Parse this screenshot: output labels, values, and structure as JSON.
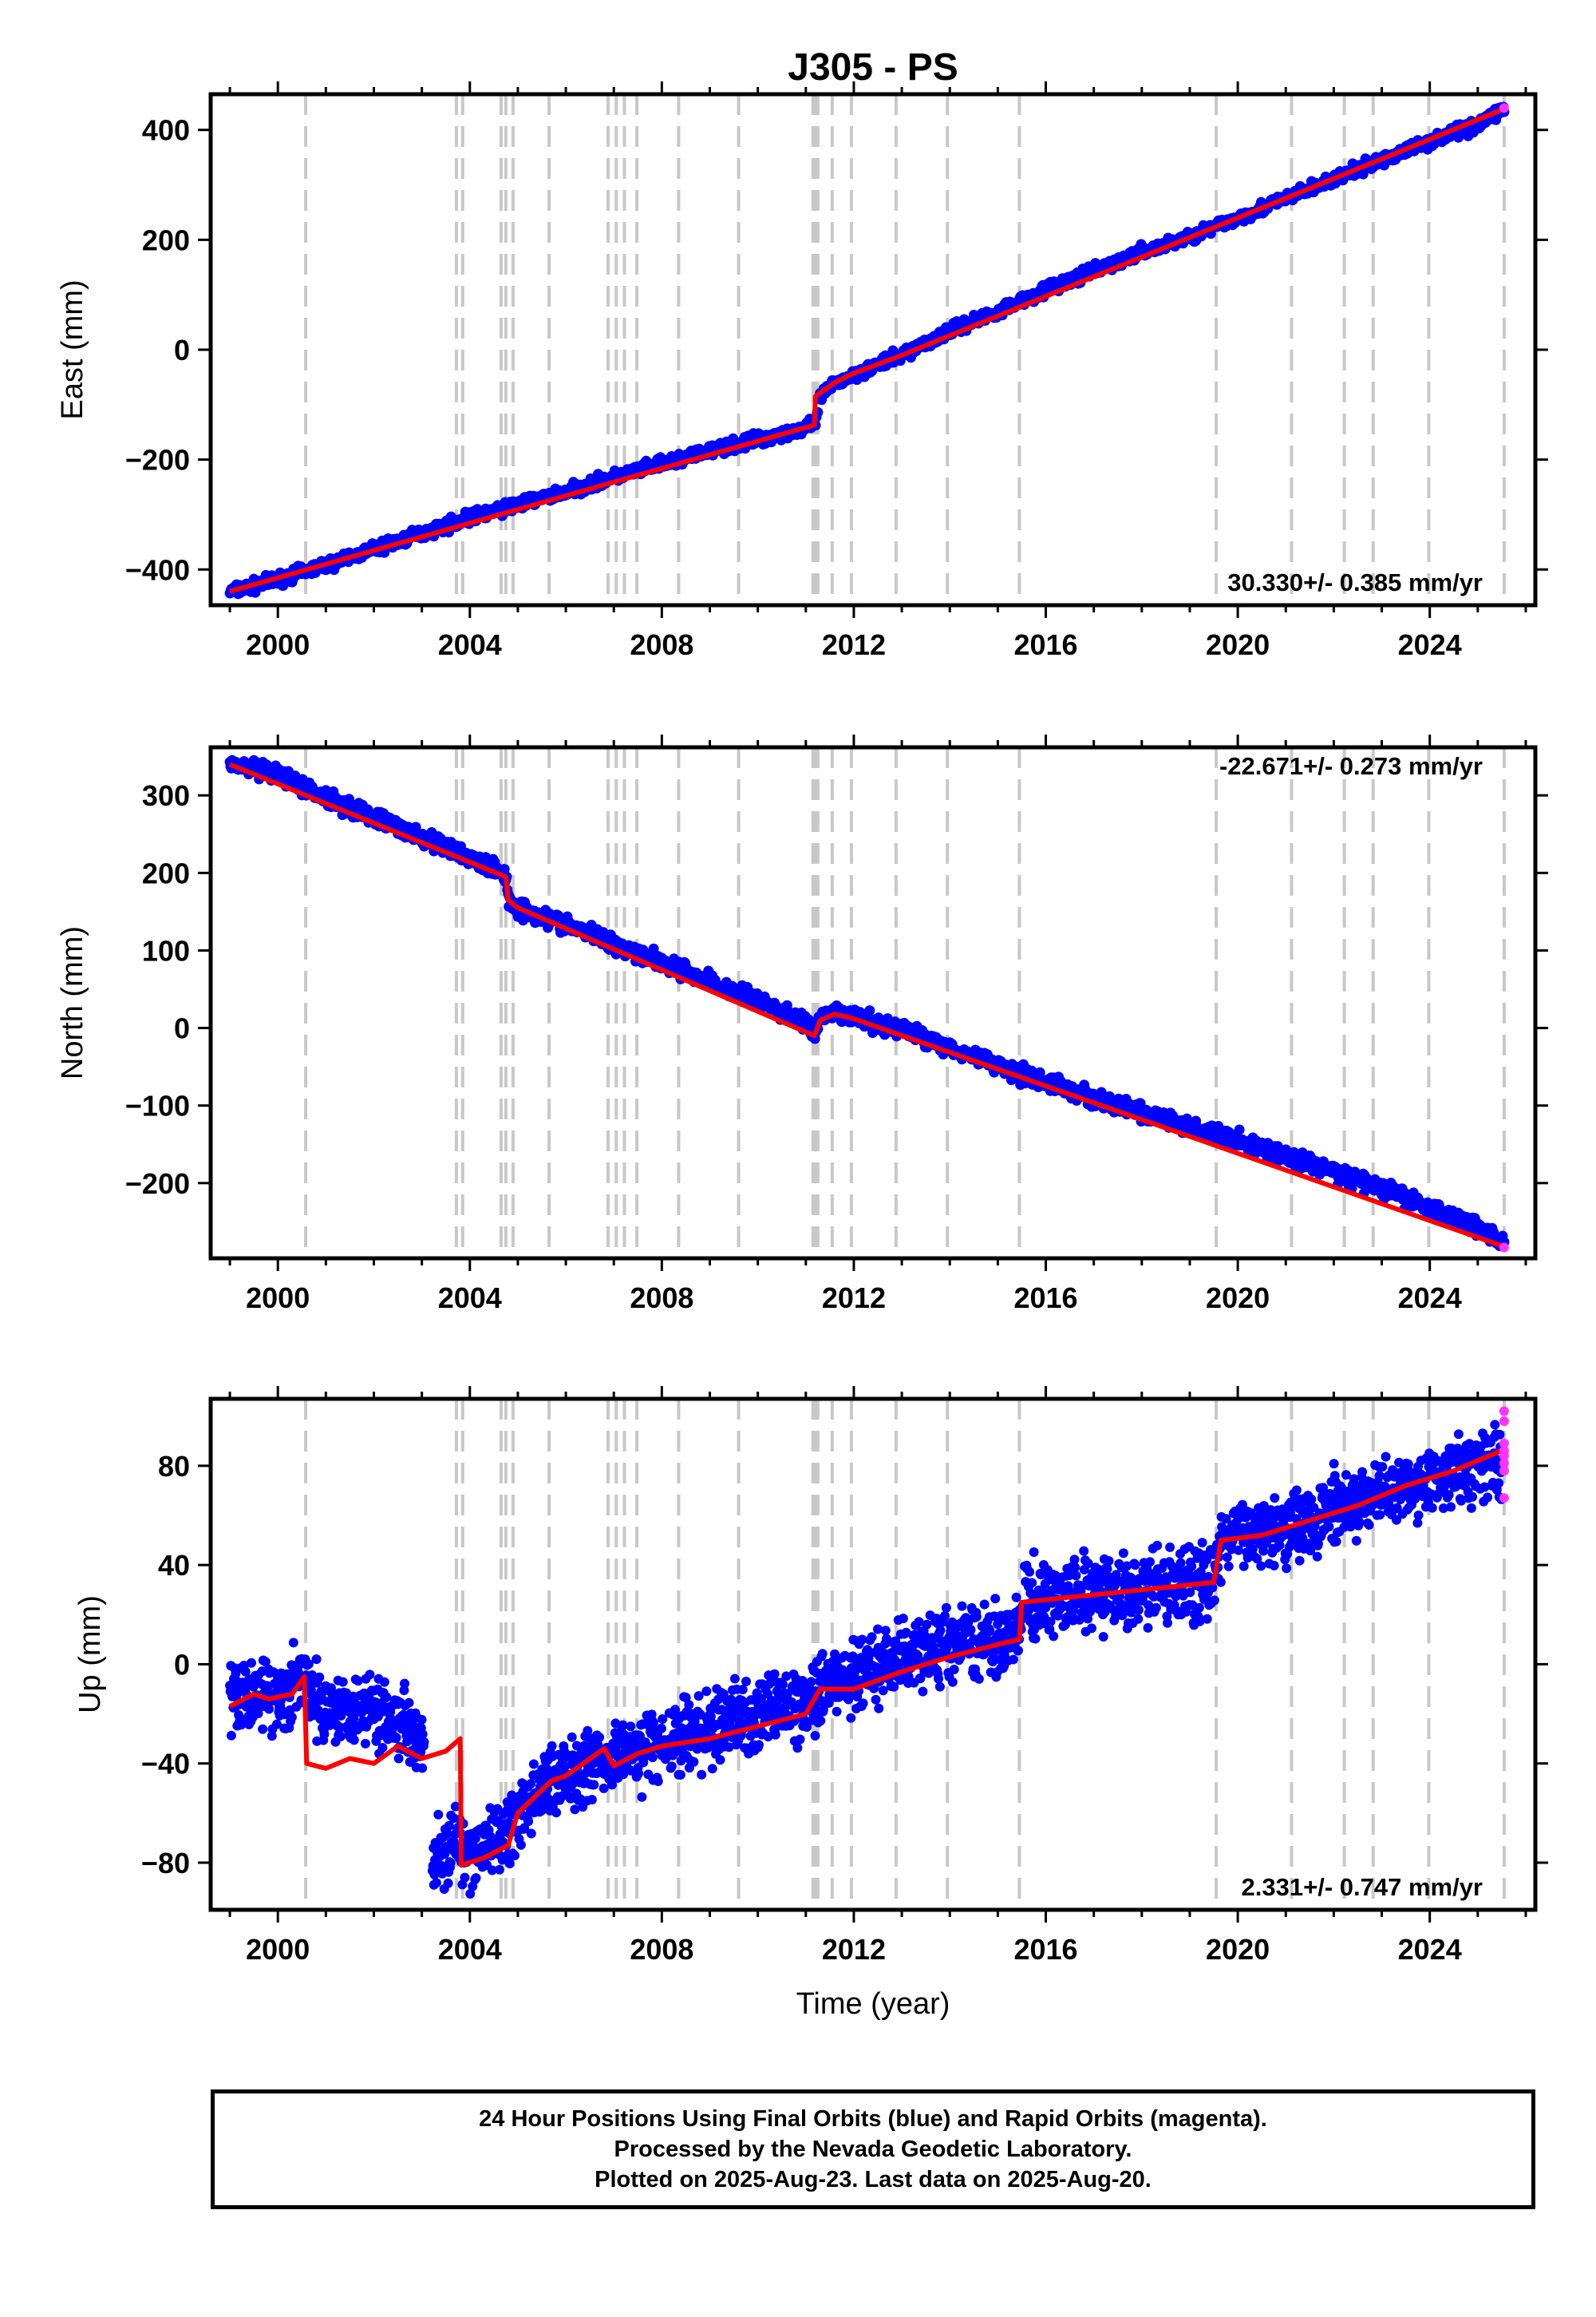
{
  "title": "J305 - PS",
  "chart_data": [
    {
      "type": "scatter",
      "ylabel": "East (mm)",
      "xlabel": "",
      "xlim": [
        1998.6,
        2026.2
      ],
      "ylim": [
        -465,
        465
      ],
      "x_ticks": [
        2000,
        2004,
        2008,
        2012,
        2016,
        2020,
        2024
      ],
      "y_ticks": [
        -400,
        -200,
        0,
        200,
        400
      ],
      "rate_label": "30.330+/- 0.385 mm/yr",
      "rate_position": "bottom-right",
      "series": [
        {
          "color": "#0000ff",
          "marker": "dot",
          "x": [
            1999.0,
            1999.5,
            2000.0,
            2001.0,
            2002.0,
            2003.0,
            2004.0,
            2005.0,
            2006.0,
            2007.0,
            2008.0,
            2009.0,
            2010.0,
            2011.0,
            2011.2,
            2011.3,
            2011.6,
            2012.0,
            2013.0,
            2014.0,
            2015.0,
            2016.0,
            2017.0,
            2018.0,
            2019.0,
            2020.0,
            2021.0,
            2022.0,
            2023.0,
            2024.0,
            2025.0,
            2025.55
          ],
          "y": [
            -440,
            -430,
            -418,
            -392,
            -363,
            -335,
            -305,
            -282,
            -258,
            -232,
            -208,
            -185,
            -163,
            -143,
            -135,
            -85,
            -62,
            -45,
            -10,
            35,
            70,
            110,
            142,
            178,
            205,
            240,
            275,
            310,
            345,
            380,
            410,
            440
          ]
        }
      ],
      "rapid": {
        "color": "#ff33ff",
        "x": [
          2025.55
        ],
        "y": [
          440
        ]
      },
      "model": {
        "color": "#ff0000",
        "x": [
          1999.0,
          2011.18,
          2011.2,
          2011.6,
          2012.0,
          2013.0,
          2025.6
        ],
        "y": [
          -440,
          -137,
          -85,
          -60,
          -43,
          -10,
          440
        ]
      }
    },
    {
      "type": "scatter",
      "ylabel": "North (mm)",
      "xlabel": "",
      "xlim": [
        1998.6,
        2026.2
      ],
      "ylim": [
        -297,
        362
      ],
      "x_ticks": [
        2000,
        2004,
        2008,
        2012,
        2016,
        2020,
        2024
      ],
      "y_ticks": [
        -200,
        -100,
        0,
        100,
        200,
        300
      ],
      "rate_label": "-22.671+/- 0.273 mm/yr",
      "rate_position": "top-right",
      "series": [
        {
          "color": "#0000ff",
          "marker": "dot",
          "x": [
            1999.0,
            1999.5,
            2000.0,
            2001.0,
            2002.0,
            2003.0,
            2004.0,
            2004.5,
            2004.75,
            2004.8,
            2005.0,
            2006.0,
            2007.0,
            2008.0,
            2009.0,
            2010.0,
            2011.0,
            2011.18,
            2011.3,
            2011.6,
            2012.0,
            2012.5,
            2013.0,
            2014.0,
            2015.0,
            2016.0,
            2017.0,
            2018.0,
            2019.0,
            2020.0,
            2021.0,
            2022.0,
            2023.0,
            2024.0,
            2025.0,
            2025.55
          ],
          "y": [
            340,
            333,
            325,
            298,
            272,
            245,
            220,
            205,
            198,
            165,
            155,
            133,
            110,
            85,
            60,
            35,
            8,
            -8,
            12,
            18,
            15,
            5,
            -2,
            -25,
            -48,
            -70,
            -90,
            -110,
            -128,
            -145,
            -165,
            -185,
            -207,
            -232,
            -255,
            -278
          ]
        }
      ],
      "rapid": {
        "color": "#ff33ff",
        "x": [
          2025.55
        ],
        "y": [
          -283
        ]
      },
      "model": {
        "color": "#ff0000",
        "x": [
          1999.0,
          2004.75,
          2004.8,
          2005.0,
          2011.18,
          2011.3,
          2011.6,
          2012.0,
          2025.6
        ],
        "y": [
          340,
          195,
          165,
          155,
          -10,
          10,
          18,
          12,
          -283
        ]
      }
    },
    {
      "type": "scatter",
      "ylabel": "Up (mm)",
      "xlabel": "Time (year)",
      "xlim": [
        1998.6,
        2026.2
      ],
      "ylim": [
        -99,
        107
      ],
      "x_ticks": [
        2000,
        2004,
        2008,
        2012,
        2016,
        2020,
        2024
      ],
      "y_ticks": [
        -80,
        -40,
        0,
        40,
        80
      ],
      "rate_label": "2.331+/- 0.747 mm/yr",
      "rate_position": "bottom-right",
      "series": [
        {
          "color": "#0000ff",
          "marker": "dot",
          "x": [
            1999.0,
            1999.5,
            2000.0,
            2000.55,
            2000.7,
            2001.5,
            2002.0,
            2002.5,
            2003.1,
            2003.2,
            2003.5,
            2003.75,
            2003.8,
            2004.5,
            2005.0,
            2005.7,
            2006.5,
            2007.0,
            2008.0,
            2009.0,
            2010.0,
            2011.0,
            2011.3,
            2012.0,
            2013.0,
            2014.0,
            2015.0,
            2015.45,
            2015.5,
            2016.5,
            2017.5,
            2018.5,
            2019.5,
            2019.65,
            2020.5,
            2021.5,
            2022.5,
            2023.5,
            2024.5,
            2025.5
          ],
          "y": [
            -16,
            -10,
            -14,
            -5,
            -15,
            -18,
            -17,
            -22,
            -30,
            -80,
            -76,
            -70,
            -80,
            -72,
            -62,
            -46,
            -40,
            -36,
            -33,
            -26,
            -20,
            -15,
            -8,
            -5,
            2,
            8,
            10,
            11,
            25,
            27,
            29,
            31,
            33,
            50,
            55,
            58,
            65,
            72,
            78,
            82
          ]
        }
      ],
      "rapid": {
        "color": "#ff33ff",
        "x": [
          2025.55,
          2025.55,
          2025.55,
          2025.55,
          2025.55,
          2025.55,
          2025.55,
          2025.55
        ],
        "y": [
          67,
          78,
          81,
          84,
          86,
          89,
          98,
          102
        ]
      },
      "model": {
        "color": "#ff0000",
        "x": [
          1999.0,
          1999.5,
          1999.8,
          2000.3,
          2000.55,
          2000.6,
          2001.0,
          2001.5,
          2002.0,
          2002.5,
          2003.0,
          2003.5,
          2003.8,
          2003.82,
          2004.3,
          2004.8,
          2005.0,
          2005.7,
          2006.0,
          2006.8,
          2007.0,
          2007.5,
          2008.0,
          2009.0,
          2010.0,
          2011.0,
          2011.3,
          2012.0,
          2013.0,
          2014.0,
          2015.0,
          2015.45,
          2015.5,
          2016.5,
          2017.5,
          2018.5,
          2019.5,
          2019.65,
          2020.5,
          2021.5,
          2022.5,
          2023.5,
          2024.5,
          2025.6
        ],
        "y": [
          -17,
          -12,
          -14,
          -12,
          -5,
          -40,
          -42,
          -38,
          -40,
          -33,
          -38,
          -35,
          -30,
          -81,
          -78,
          -73,
          -60,
          -47,
          -45,
          -34,
          -41,
          -36,
          -33,
          -30,
          -25,
          -20,
          -10,
          -10,
          -3,
          3,
          8,
          10,
          25,
          27,
          29,
          31,
          33,
          50,
          52,
          58,
          64,
          72,
          78,
          87
        ]
      }
    }
  ],
  "event_lines": [
    2000.58,
    2003.72,
    2003.85,
    2004.65,
    2004.75,
    2004.9,
    2005.65,
    2006.88,
    2007.05,
    2007.22,
    2007.48,
    2008.35,
    2009.6,
    2011.15,
    2011.2,
    2011.25,
    2011.55,
    2011.95,
    2012.88,
    2013.95,
    2015.45,
    2019.55,
    2021.12,
    2022.22,
    2022.82,
    2023.98,
    2025.55
  ],
  "footer": {
    "line1": "24 Hour Positions Using Final Orbits (blue) and Rapid Orbits (magenta).",
    "line2": "Processed by the Nevada Geodetic Laboratory.",
    "line3": "Plotted on 2025-Aug-23. Last data on 2025-Aug-20."
  }
}
